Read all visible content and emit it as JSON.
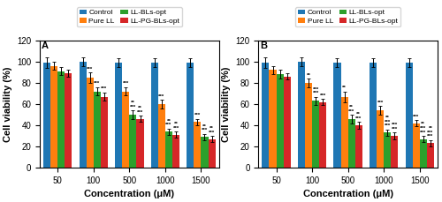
{
  "chart_data": [
    {
      "type": "bar",
      "title": "A",
      "categories": [
        "50",
        "100",
        "500",
        "1000",
        "1500"
      ],
      "xlabel": "Concentration (μM)",
      "ylabel": "Cell viability (%)",
      "ylim": [
        0,
        120
      ],
      "yticks": [
        0,
        20,
        40,
        60,
        80,
        100,
        120
      ],
      "legend": "upper center",
      "series": [
        {
          "name": "Control",
          "values": [
            99,
            100,
            99,
            99,
            99
          ],
          "errors": [
            5,
            4,
            4,
            4,
            4
          ]
        },
        {
          "name": "Pure LL",
          "values": [
            96,
            85,
            72,
            60,
            43
          ],
          "errors": [
            4,
            5,
            4,
            4,
            3
          ],
          "annotations": [
            null,
            "***",
            "***",
            "***",
            "***"
          ]
        },
        {
          "name": "LL-BLs-opt",
          "values": [
            91,
            72,
            50,
            34,
            29
          ],
          "errors": [
            4,
            4,
            4,
            3,
            3
          ],
          "annotations": [
            null,
            "***",
            "**\n***",
            "**\n***",
            "**\n***"
          ]
        },
        {
          "name": "LL-PG-BLs-opt",
          "values": [
            89,
            67,
            46,
            31,
            27
          ],
          "errors": [
            3,
            4,
            3,
            3,
            3
          ],
          "annotations": [
            null,
            "***",
            "**\n***",
            "**\n***",
            "**\n***"
          ]
        }
      ]
    },
    {
      "type": "bar",
      "title": "B",
      "categories": [
        "50",
        "100",
        "500",
        "1000",
        "1500"
      ],
      "xlabel": "Concentration (μM)",
      "ylabel": "Cell viability (%)",
      "ylim": [
        0,
        120
      ],
      "yticks": [
        0,
        20,
        40,
        60,
        80,
        100,
        120
      ],
      "legend": "upper center",
      "series": [
        {
          "name": "Control",
          "values": [
            99,
            100,
            99,
            99,
            99
          ],
          "errors": [
            5,
            4,
            4,
            4,
            4
          ]
        },
        {
          "name": "Pure LL",
          "values": [
            92,
            80,
            67,
            54,
            42
          ],
          "errors": [
            4,
            4,
            5,
            4,
            3
          ],
          "annotations": [
            null,
            "**",
            "**",
            "***",
            "***"
          ]
        },
        {
          "name": "LL-BLs-opt",
          "values": [
            88,
            63,
            46,
            33,
            27
          ],
          "errors": [
            4,
            4,
            4,
            3,
            3
          ],
          "annotations": [
            null,
            "***\n***",
            "**\n***",
            "**\n***\n***",
            "**\n***\n***"
          ]
        },
        {
          "name": "LL-PG-BLs-opt",
          "values": [
            86,
            62,
            40,
            30,
            23
          ],
          "errors": [
            3,
            3,
            3,
            3,
            3
          ],
          "annotations": [
            null,
            "***",
            "**\n***",
            "***\n***",
            "**\n***\n***"
          ]
        }
      ]
    }
  ]
}
